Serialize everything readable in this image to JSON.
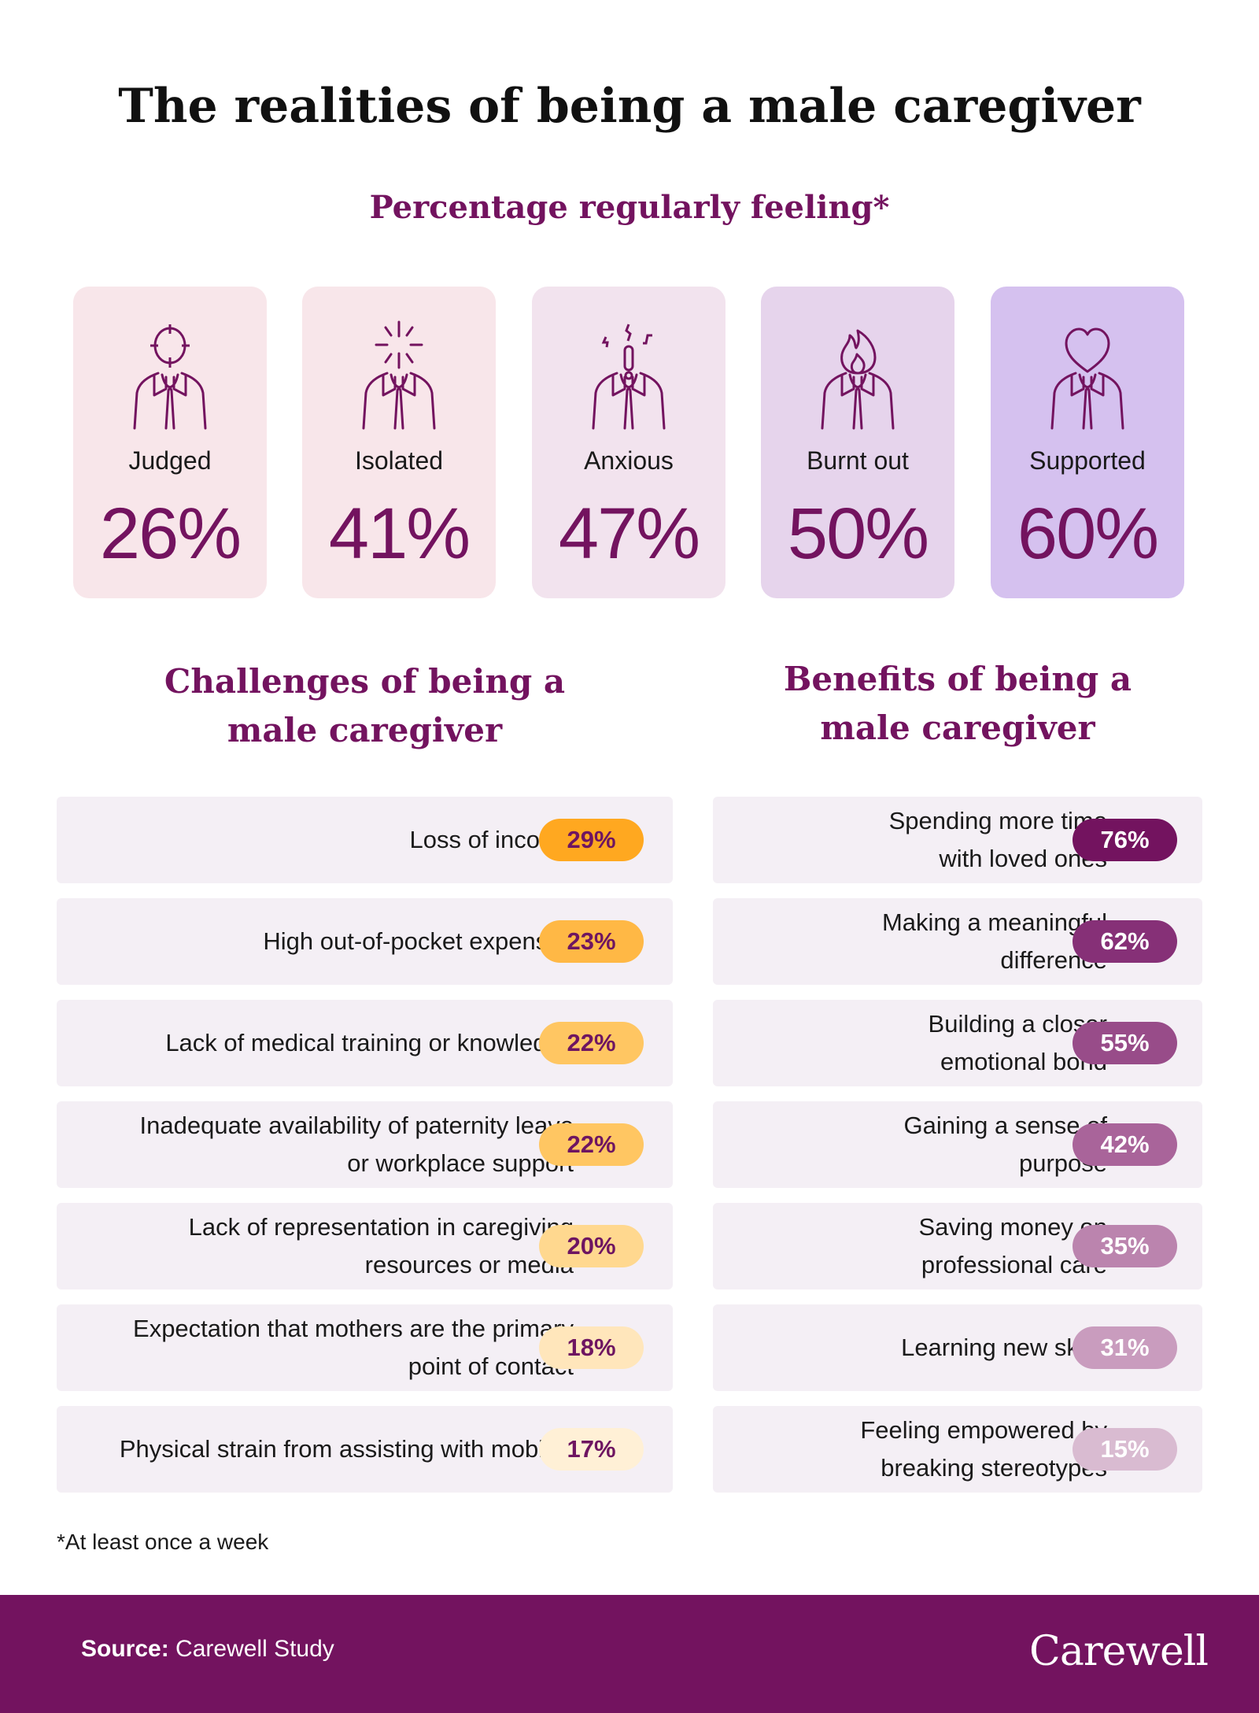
{
  "title": "The realities of being a male caregiver",
  "subtitle": "Percentage regularly feeling*",
  "feelings": [
    {
      "label": "Judged",
      "value": "26%",
      "icon": "crosshair-head-icon",
      "bg": "#f8e6ea"
    },
    {
      "label": "Isolated",
      "value": "41%",
      "icon": "burst-head-icon",
      "bg": "#f8e6ea"
    },
    {
      "label": "Anxious",
      "value": "47%",
      "icon": "exclamation-head-icon",
      "bg": "#f2e3ee"
    },
    {
      "label": "Burnt out",
      "value": "50%",
      "icon": "flame-head-icon",
      "bg": "#e6d4ec"
    },
    {
      "label": "Supported",
      "value": "60%",
      "icon": "heart-head-icon",
      "bg": "#d5c1ef"
    }
  ],
  "challenges": {
    "heading_line1": "Challenges of being a",
    "heading_line2": "male caregiver",
    "items": [
      {
        "text": "Loss of income",
        "value": "29%",
        "color": "#ffa820"
      },
      {
        "text": "High out-of-pocket expenses",
        "value": "23%",
        "color": "#ffb845"
      },
      {
        "text": "Lack of medical training or knowledge",
        "value": "22%",
        "color": "#ffc662"
      },
      {
        "text": "Inadequate availability of paternity leave or workplace support",
        "value": "22%",
        "color": "#ffc662"
      },
      {
        "text": "Lack of representation in caregiving resources or media",
        "value": "20%",
        "color": "#ffd88f"
      },
      {
        "text": "Expectation that mothers are the primary point of contact",
        "value": "18%",
        "color": "#ffe6bb"
      },
      {
        "text": "Physical strain from assisting with mobility",
        "value": "17%",
        "color": "#fff0d6"
      }
    ]
  },
  "benefits": {
    "heading_line1": "Benefits of being a",
    "heading_line2": "male caregiver",
    "items": [
      {
        "text": "Spending more time with loved ones",
        "value": "76%",
        "color": "#73135f"
      },
      {
        "text": "Making a meaningful difference",
        "value": "62%",
        "color": "#863077"
      },
      {
        "text": "Building a closer emotional bond",
        "value": "55%",
        "color": "#984c89"
      },
      {
        "text": "Gaining a sense of purpose",
        "value": "42%",
        "color": "#a9649a"
      },
      {
        "text": "Saving money on professional care",
        "value": "35%",
        "color": "#bb84ae"
      },
      {
        "text": "Learning new skills",
        "value": "31%",
        "color": "#c99cbe"
      },
      {
        "text": "Feeling empowered by breaking stereotypes",
        "value": "15%",
        "color": "#d9bbd1"
      }
    ]
  },
  "footnote": "*At least once a week",
  "footer": {
    "source_label": "Source:",
    "source": "Carewell Study",
    "logo": "Carewell"
  }
}
